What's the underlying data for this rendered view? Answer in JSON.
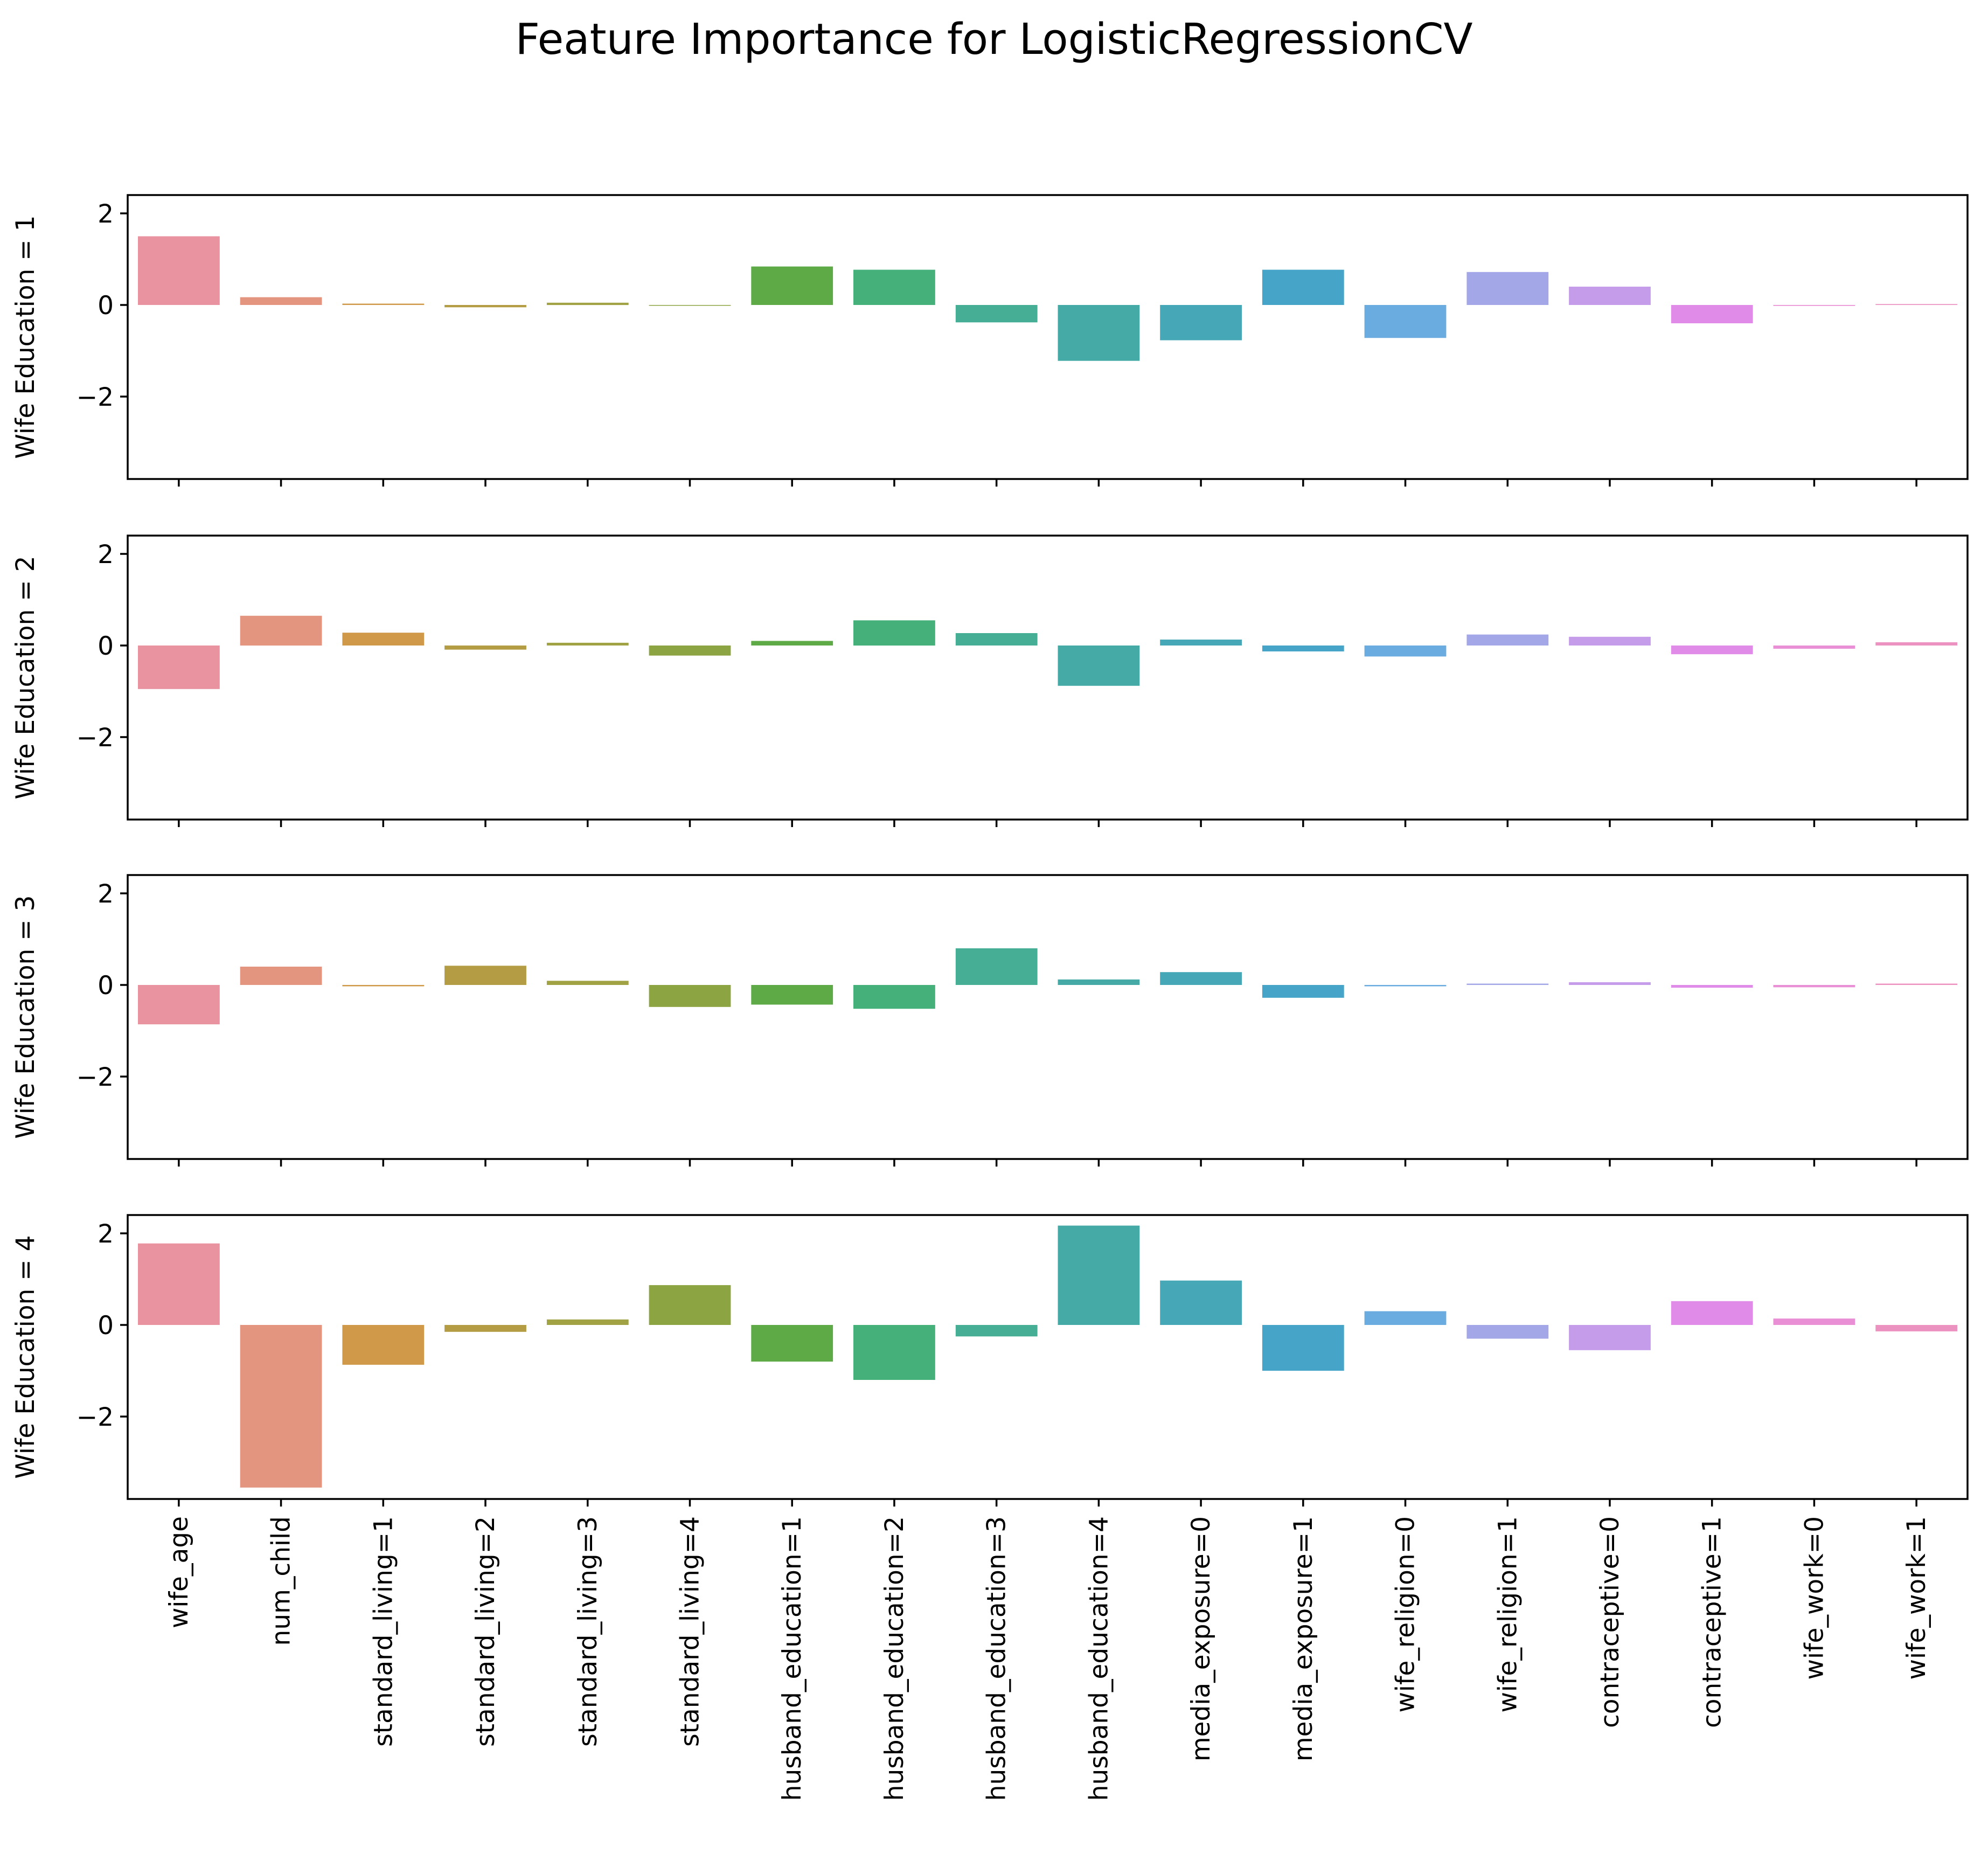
{
  "chart_data": {
    "type": "bar",
    "title": "Feature Importance for LogisticRegressionCV",
    "categories": [
      "wife_age",
      "num_child",
      "standard_living=1",
      "standard_living=2",
      "standard_living=3",
      "standard_living=4",
      "husband_education=1",
      "husband_education=2",
      "husband_education=3",
      "husband_education=4",
      "media_exposure=0",
      "media_exposure=1",
      "wife_religion=0",
      "wife_religion=1",
      "contraceptive=0",
      "contraceptive=1",
      "wife_work=0",
      "wife_work=1"
    ],
    "colors": [
      "#e8939f",
      "#e3957f",
      "#d0994a",
      "#b49c44",
      "#a1a244",
      "#8da442",
      "#5daa46",
      "#46b07a",
      "#46ae94",
      "#45aaa6",
      "#46a7b6",
      "#45a4c8",
      "#6aace0",
      "#a4a7e7",
      "#c49ce9",
      "#e08be8",
      "#e88fd6",
      "#ec92c0"
    ],
    "ylim": [
      -3.8,
      2.4
    ],
    "yticks": [
      -2,
      0,
      2
    ],
    "yticklabels": [
      "−2",
      "0",
      "2"
    ],
    "panels": [
      {
        "ylabel": "Wife Education = 1",
        "values": [
          1.5,
          0.17,
          0.03,
          -0.05,
          0.05,
          0.0,
          0.84,
          0.77,
          -0.38,
          -1.22,
          -0.77,
          0.77,
          -0.72,
          0.72,
          0.4,
          -0.4,
          -0.02,
          0.02
        ]
      },
      {
        "ylabel": "Wife Education = 2",
        "values": [
          -0.95,
          0.65,
          0.28,
          -0.09,
          0.06,
          -0.22,
          0.1,
          0.55,
          0.27,
          -0.88,
          0.13,
          -0.13,
          -0.24,
          0.24,
          0.19,
          -0.19,
          -0.07,
          0.07
        ]
      },
      {
        "ylabel": "Wife Education = 3",
        "values": [
          -0.86,
          0.4,
          -0.03,
          0.42,
          0.09,
          -0.48,
          -0.43,
          -0.52,
          0.8,
          0.12,
          0.28,
          -0.28,
          -0.03,
          0.03,
          0.06,
          -0.06,
          -0.05,
          0.03
        ]
      },
      {
        "ylabel": "Wife Education = 4",
        "values": [
          1.78,
          -3.55,
          -0.87,
          -0.15,
          0.12,
          0.87,
          -0.8,
          -1.2,
          -0.25,
          2.17,
          0.97,
          -1.0,
          0.3,
          -0.3,
          -0.55,
          0.52,
          0.14,
          -0.14
        ]
      }
    ]
  }
}
